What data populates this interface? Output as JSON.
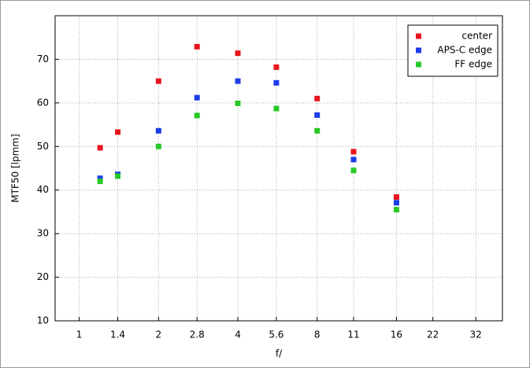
{
  "chart_data": {
    "type": "scatter",
    "xlabel": "f/",
    "ylabel": "MTF50 [lpmm]",
    "x": [
      1.2,
      1.4,
      2,
      2.8,
      4,
      5.6,
      8,
      11,
      16
    ],
    "series": [
      {
        "name": "center",
        "color": "#e8141c",
        "values": [
          49.7,
          53.3,
          65,
          72.9,
          71.4,
          68.2,
          61,
          48.8,
          38.4
        ]
      },
      {
        "name": "APS-C edge",
        "color": "#1c3ce8",
        "values": [
          42.7,
          43.6,
          53.6,
          61.2,
          65,
          64.6,
          57.2,
          47,
          37.1
        ]
      },
      {
        "name": "FF edge",
        "color": "#28c828",
        "values": [
          42,
          43.2,
          50,
          57.1,
          59.9,
          58.7,
          53.6,
          44.5,
          35.5
        ]
      }
    ],
    "xscale": "log",
    "xlim": [
      0.81,
      40.4
    ],
    "xticks": [
      1,
      1.4,
      2,
      2.8,
      4,
      5.6,
      8,
      11,
      16,
      22,
      32
    ],
    "ylim": [
      10,
      80
    ],
    "yticks": [
      10,
      20,
      30,
      40,
      50,
      60,
      70
    ],
    "grid": true,
    "legend": "upper right"
  }
}
